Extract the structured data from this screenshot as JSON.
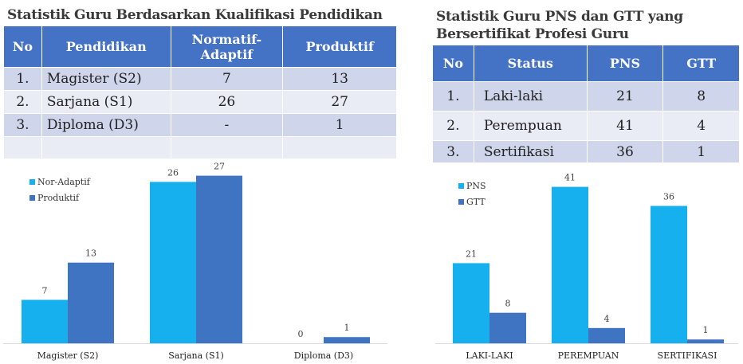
{
  "left": {
    "title": "Statistik Guru Berdasarkan Kualifikasi Pendidikan",
    "headers": [
      "No",
      "Pendidikan",
      "Normatif-Adaptif",
      "Produktif"
    ],
    "rows": [
      [
        "1.",
        "Magister (S2)",
        "7",
        "13"
      ],
      [
        "2.",
        "Sarjana (S1)",
        "26",
        "27"
      ],
      [
        "3.",
        "Diploma (D3)",
        "-",
        "1"
      ]
    ]
  },
  "right": {
    "title_line1": "Statistik Guru PNS dan GTT yang",
    "title_line2": "Bersertifikat Profesi Guru",
    "headers": [
      "No",
      "Status",
      "PNS",
      "GTT"
    ],
    "rows": [
      [
        "1.",
        "Laki-laki",
        "21",
        "8"
      ],
      [
        "2.",
        "Perempuan",
        "41",
        "4"
      ],
      [
        "3.",
        "Sertifikasi",
        "36",
        "1"
      ]
    ]
  },
  "chart_data": [
    {
      "type": "bar",
      "categories": [
        "Magister (S2)",
        "Sarjana (S1)",
        "Diploma (D3)"
      ],
      "series": [
        {
          "name": "Nor-Adaptif",
          "values": [
            7,
            26,
            0
          ],
          "color": "#17b0ee"
        },
        {
          "name": "Produktif",
          "values": [
            13,
            27,
            1
          ],
          "color": "#3f74c2"
        }
      ],
      "legend": "top-left",
      "ylim": [
        0,
        29
      ]
    },
    {
      "type": "bar",
      "categories": [
        "LAKI-LAKI",
        "PEREMPUAN",
        "SERTIFIKASI"
      ],
      "series": [
        {
          "name": "PNS",
          "values": [
            21,
            41,
            36
          ],
          "color": "#17b0ee"
        },
        {
          "name": "GTT",
          "values": [
            8,
            4,
            1
          ],
          "color": "#3f74c2"
        }
      ],
      "legend": "top-left",
      "ylim": [
        0,
        43
      ]
    }
  ]
}
